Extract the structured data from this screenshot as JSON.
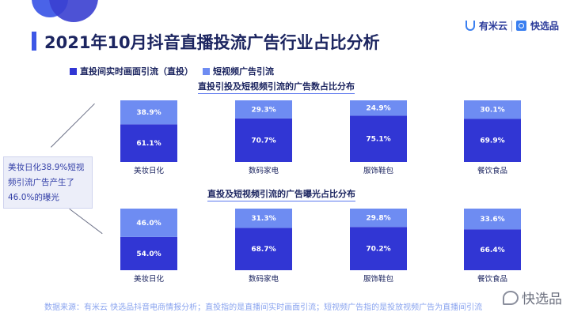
{
  "header": {
    "title": "2021年10月抖音直播投流广告行业占比分析",
    "brand_left": "有米云",
    "brand_right": "快选品"
  },
  "legend": [
    {
      "label": "直投间实时画面引流（直投）",
      "color": "#3136d4"
    },
    {
      "label": "短视频广告引流",
      "color": "#6e8cf2"
    }
  ],
  "note": {
    "text": "美妆日化38.9%短视频引流广告产生了46.0%的曝光"
  },
  "source": {
    "text": "数据来源：有米云 快选品抖音电商情报分析；直投指的是直播间实时画面引流；短视频广告指的是投放视频广告为直播间引流"
  },
  "watermark": {
    "text": "快选品"
  },
  "colors": {
    "primary": "#3136d4",
    "secondary": "#6e8cf2",
    "accent": "#3d57e6"
  },
  "chart_data": [
    {
      "type": "bar",
      "stacked": true,
      "title": "直投引投及短视频引流的广告数占比分布",
      "categories": [
        "美妆日化",
        "数码家电",
        "服饰鞋包",
        "餐饮食品"
      ],
      "series": [
        {
          "name": "直投间实时画面引流（直投）",
          "values": [
            61.1,
            70.7,
            75.1,
            69.9
          ]
        },
        {
          "name": "短视频广告引流",
          "values": [
            38.9,
            29.3,
            24.9,
            30.1
          ]
        }
      ],
      "ylim": [
        0,
        100
      ]
    },
    {
      "type": "bar",
      "stacked": true,
      "title": "直投及短视频引流的广告曝光占比分布",
      "categories": [
        "美妆日化",
        "数码家电",
        "服饰鞋包",
        "餐饮食品"
      ],
      "series": [
        {
          "name": "直投间实时画面引流（直投）",
          "values": [
            54.0,
            68.7,
            70.2,
            66.4
          ]
        },
        {
          "name": "短视频广告引流",
          "values": [
            46.0,
            31.3,
            29.8,
            33.6
          ]
        }
      ],
      "ylim": [
        0,
        100
      ]
    }
  ]
}
